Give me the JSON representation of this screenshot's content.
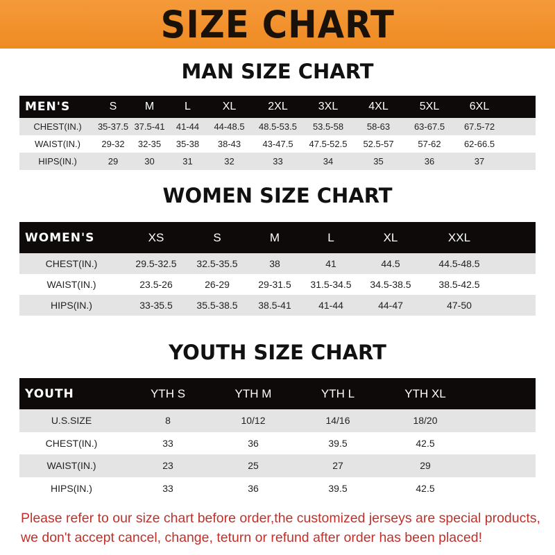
{
  "title": "SIZE CHART",
  "men": {
    "heading": "MAN SIZE CHART",
    "header": [
      "MEN'S",
      "S",
      "M",
      "L",
      "XL",
      "2XL",
      "3XL",
      "4XL",
      "5XL",
      "6XL"
    ],
    "rows": [
      [
        "CHEST(IN.)",
        "35-37.5",
        "37.5-41",
        "41-44",
        "44-48.5",
        "48.5-53.5",
        "53.5-58",
        "58-63",
        "63-67.5",
        "67.5-72"
      ],
      [
        "WAIST(IN.)",
        "29-32",
        "32-35",
        "35-38",
        "38-43",
        "43-47.5",
        "47.5-52.5",
        "52.5-57",
        "57-62",
        "62-66.5"
      ],
      [
        "HIPS(IN.)",
        "29",
        "30",
        "31",
        "32",
        "33",
        "34",
        "35",
        "36",
        "37"
      ]
    ]
  },
  "women": {
    "heading": "WOMEN SIZE CHART",
    "header": [
      "WOMEN'S",
      "XS",
      "S",
      "M",
      "L",
      "XL",
      "XXL"
    ],
    "rows": [
      [
        "CHEST(IN.)",
        "29.5-32.5",
        "32.5-35.5",
        "38",
        "41",
        "44.5",
        "44.5-48.5"
      ],
      [
        "WAIST(IN.)",
        "23.5-26",
        "26-29",
        "29-31.5",
        "31.5-34.5",
        "34.5-38.5",
        "38.5-42.5"
      ],
      [
        "HIPS(IN.)",
        "33-35.5",
        "35.5-38.5",
        "38.5-41",
        "41-44",
        "44-47",
        "47-50"
      ]
    ]
  },
  "youth": {
    "heading": "YOUTH SIZE CHART",
    "header": [
      "YOUTH",
      "YTH S",
      "YTH M",
      "YTH L",
      "YTH XL"
    ],
    "rows": [
      [
        "U.S.SIZE",
        "8",
        "10/12",
        "14/16",
        "18/20"
      ],
      [
        "CHEST(IN.)",
        "33",
        "36",
        "39.5",
        "42.5"
      ],
      [
        "WAIST(IN.)",
        "23",
        "25",
        "27",
        "29"
      ],
      [
        "HIPS(IN.)",
        "33",
        "36",
        "39.5",
        "42.5"
      ]
    ]
  },
  "note": "Please refer to our size chart before order,the customized jerseys are special products, we don't accept cancel, change, teturn or refund after order has been placed!",
  "colors": {
    "banner": "#ee8a22",
    "header_row": "#0e0a0a",
    "stripe": "#e4e4e4",
    "note": "#c0302a"
  }
}
